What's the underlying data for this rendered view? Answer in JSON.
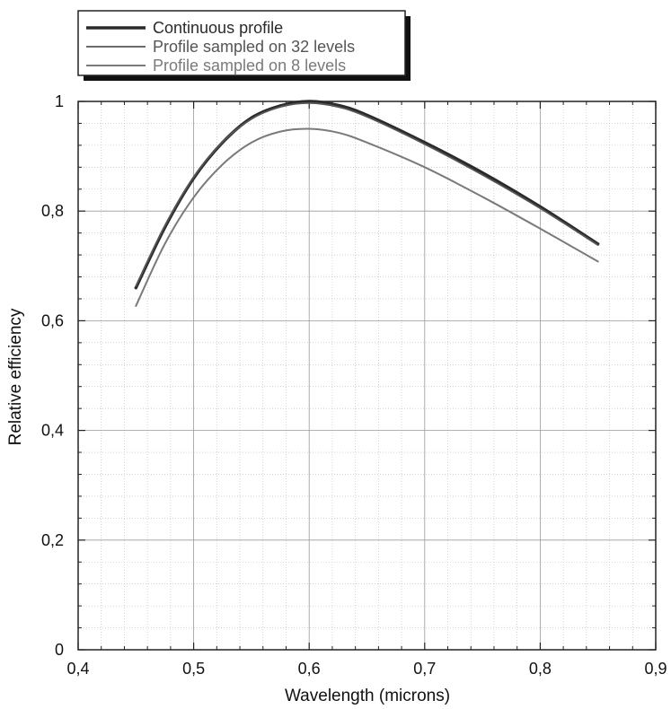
{
  "chart_data": {
    "type": "line",
    "title": "",
    "xlabel": "Wavelength (microns)",
    "ylabel": "Relative efficiency",
    "xlim": [
      0.4,
      0.9
    ],
    "ylim": [
      0,
      1
    ],
    "x_ticks": [
      0.4,
      0.5,
      0.6,
      0.7,
      0.8,
      0.9
    ],
    "x_tick_labels": [
      "0,4",
      "0,5",
      "0,6",
      "0,7",
      "0,8",
      "0,9"
    ],
    "y_ticks": [
      0,
      0.2,
      0.4,
      0.6,
      0.8,
      1
    ],
    "y_tick_labels": [
      "0",
      "0,2",
      "0,4",
      "0,6",
      "0,8",
      "1"
    ],
    "grid": true,
    "legend_position": "top-left, outside plot",
    "series": [
      {
        "name": "Continuous profile",
        "color": "#2a2a2a",
        "x": [
          0.45,
          0.475,
          0.5,
          0.525,
          0.55,
          0.575,
          0.6,
          0.625,
          0.65,
          0.7,
          0.75,
          0.8,
          0.85
        ],
        "y": [
          0.66,
          0.77,
          0.86,
          0.925,
          0.97,
          0.992,
          1.0,
          0.993,
          0.975,
          0.925,
          0.87,
          0.808,
          0.74
        ]
      },
      {
        "name": "Profile sampled on 32 levels",
        "color": "#555555",
        "x": [
          0.45,
          0.475,
          0.5,
          0.525,
          0.55,
          0.575,
          0.6,
          0.625,
          0.65,
          0.7,
          0.75,
          0.8,
          0.85
        ],
        "y": [
          0.663,
          0.773,
          0.862,
          0.926,
          0.968,
          0.99,
          0.997,
          0.99,
          0.972,
          0.922,
          0.866,
          0.805,
          0.738
        ]
      },
      {
        "name": "Profile sampled on 8 levels",
        "color": "#7a7a7a",
        "x": [
          0.45,
          0.475,
          0.5,
          0.525,
          0.55,
          0.575,
          0.6,
          0.625,
          0.65,
          0.7,
          0.75,
          0.8,
          0.85
        ],
        "y": [
          0.627,
          0.74,
          0.825,
          0.885,
          0.925,
          0.945,
          0.95,
          0.943,
          0.925,
          0.88,
          0.826,
          0.768,
          0.708
        ]
      }
    ]
  }
}
